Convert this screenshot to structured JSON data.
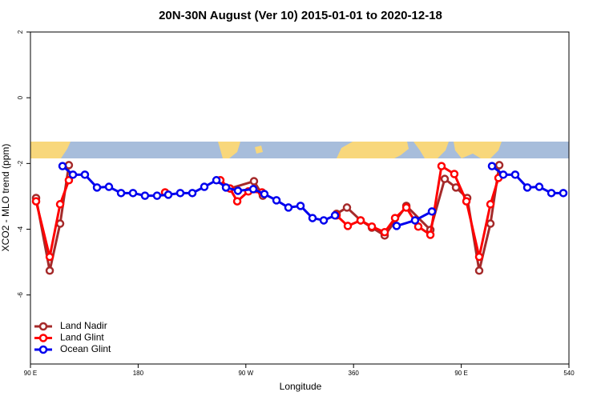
{
  "chart_data": {
    "type": "line",
    "title": "20N-30N August (Ver 10)   2015-01-01 to 2020-12-18",
    "x_label": "Longitude",
    "y_label": "XCO2 - MLO trend (ppm)",
    "xlim": [
      90,
      540
    ],
    "xticks": [
      {
        "value": 90,
        "label": "90 E"
      },
      180,
      {
        "value": 270,
        "label": "90 W"
      },
      360,
      {
        "value": 450,
        "label": "90 E"
      },
      540
    ],
    "ylim": [
      -8.1,
      2
    ],
    "yticks": [
      2,
      0,
      -2,
      -4,
      -6
    ],
    "legend": "bottom-left",
    "series": [
      {
        "name": "Land Nadir",
        "color": "#a52a2a",
        "x": [
          94.7,
          106.1,
          114.8,
          122.1,
          null,
          256.7,
          276.8,
          284.2,
          null,
          345.8,
          354.5,
          365.9,
          375.3,
          386.0,
          404.1,
          424.2,
          436.2,
          445.6,
          455.0,
          465.0,
          474.4,
          481.8
        ],
        "values": [
          -3.05,
          -5.26,
          -3.83,
          -2.05,
          null,
          -2.76,
          -2.54,
          -2.98,
          null,
          -3.53,
          -3.34,
          -3.73,
          -3.95,
          -4.19,
          -3.29,
          -4.02,
          -2.47,
          -2.73,
          -3.05,
          -5.26,
          -3.83,
          -2.05
        ]
      },
      {
        "name": "Land Glint",
        "color": "#ff0000",
        "x": [
          94.7,
          106.1,
          114.8,
          122.1,
          null,
          202.5,
          null,
          248.7,
          256.7,
          262.8,
          272.1,
          283.5,
          null,
          345.8,
          355.2,
          365.9,
          375.3,
          386.0,
          394.7,
          404.1,
          414.1,
          424.2,
          433.5,
          444.2,
          454.3,
          465.0,
          474.4,
          481.1
        ],
        "values": [
          -3.15,
          -4.84,
          -3.24,
          -2.51,
          null,
          -2.88,
          null,
          -2.51,
          -2.76,
          -3.15,
          -2.85,
          -2.88,
          null,
          -3.58,
          -3.9,
          -3.73,
          -3.92,
          -4.09,
          -3.66,
          -3.34,
          -3.92,
          -4.17,
          -2.08,
          -2.32,
          -3.15,
          -4.84,
          -3.24,
          -2.44
        ]
      },
      {
        "name": "Ocean Glint",
        "color": "#0000ee",
        "x": [
          116.8,
          125.5,
          135.5,
          145.6,
          155.6,
          165.7,
          175.7,
          185.7,
          195.8,
          205.2,
          215.2,
          225.3,
          235.3,
          245.4,
          253.4,
          263.4,
          276.2,
          285.5,
          295.6,
          305.6,
          315.7,
          325.7,
          335.1,
          344.5,
          null,
          396.0,
          411.4,
          425.5,
          null,
          475.7,
          485.1,
          495.1,
          505.2,
          515.2,
          525.3,
          535.3
        ],
        "values": [
          -2.08,
          -2.34,
          -2.34,
          -2.73,
          -2.71,
          -2.9,
          -2.9,
          -2.98,
          -2.98,
          -2.95,
          -2.9,
          -2.9,
          -2.71,
          -2.51,
          -2.73,
          -2.83,
          -2.78,
          -2.93,
          -3.12,
          -3.34,
          -3.29,
          -3.66,
          -3.73,
          -3.58,
          null,
          -3.9,
          -3.73,
          -3.46,
          null,
          -2.08,
          -2.34,
          -2.34,
          -2.73,
          -2.71,
          -2.9,
          -2.9
        ]
      }
    ]
  }
}
